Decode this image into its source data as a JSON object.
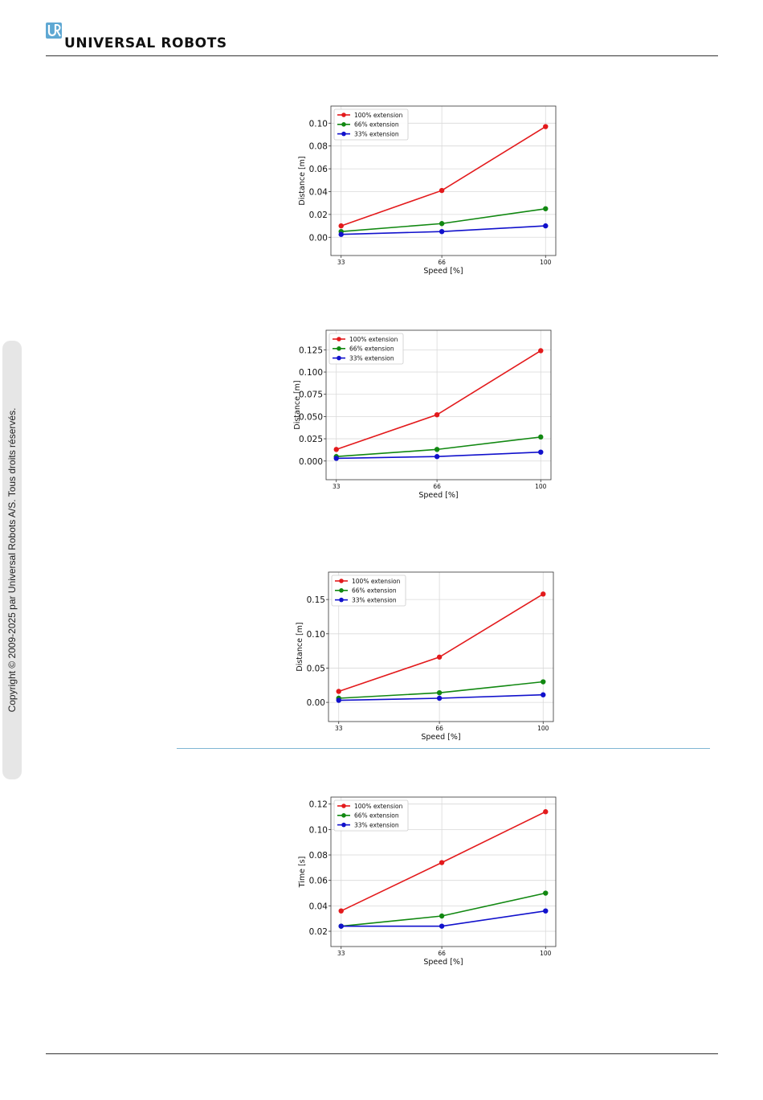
{
  "header": {
    "brand": "UNIVERSAL ROBOTS",
    "brand_color": "#1a1a1a",
    "logo_color": "#5fa8d3"
  },
  "sidebar": {
    "copyright": "Copyright © 2009-2025 par Universal Robots A/S. Tous droits réservés."
  },
  "chart_data": [
    {
      "type": "line",
      "x": [
        33,
        66,
        100
      ],
      "xticks": [
        "33",
        "66",
        "100"
      ],
      "xlabel": "Speed [%]",
      "ylabel": "Distance [m]",
      "ylim": [
        -0.016,
        0.115
      ],
      "yticks": [
        "0.00",
        "0.02",
        "0.04",
        "0.06",
        "0.08",
        "0.10"
      ],
      "ytick_values": [
        0,
        0.02,
        0.04,
        0.06,
        0.08,
        0.1
      ],
      "grid": true,
      "legend": "top-left",
      "series": [
        {
          "name": "100% extension",
          "color": "#e31a1c",
          "values": [
            0.01,
            0.041,
            0.097
          ]
        },
        {
          "name": "66% extension",
          "color": "#118811",
          "values": [
            0.005,
            0.012,
            0.025
          ]
        },
        {
          "name": "33% extension",
          "color": "#1111cc",
          "values": [
            0.0025,
            0.005,
            0.01
          ]
        }
      ]
    },
    {
      "type": "line",
      "x": [
        33,
        66,
        100
      ],
      "xticks": [
        "33",
        "66",
        "100"
      ],
      "xlabel": "Speed [%]",
      "ylabel": "Distance [m]",
      "ylim": [
        -0.021,
        0.147
      ],
      "yticks": [
        "0.000",
        "0.025",
        "0.050",
        "0.075",
        "0.100",
        "0.125"
      ],
      "ytick_values": [
        0,
        0.025,
        0.05,
        0.075,
        0.1,
        0.125
      ],
      "grid": true,
      "legend": "top-left",
      "series": [
        {
          "name": "100% extension",
          "color": "#e31a1c",
          "values": [
            0.013,
            0.052,
            0.124
          ]
        },
        {
          "name": "66% extension",
          "color": "#118811",
          "values": [
            0.005,
            0.013,
            0.027
          ]
        },
        {
          "name": "33% extension",
          "color": "#1111cc",
          "values": [
            0.003,
            0.005,
            0.01
          ]
        }
      ]
    },
    {
      "type": "line",
      "x": [
        33,
        66,
        100
      ],
      "xticks": [
        "33",
        "66",
        "100"
      ],
      "xlabel": "Speed [%]",
      "ylabel": "Distance [m]",
      "ylim": [
        -0.028,
        0.19
      ],
      "yticks": [
        "0.00",
        "0.05",
        "0.10",
        "0.15"
      ],
      "ytick_values": [
        0,
        0.05,
        0.1,
        0.15
      ],
      "grid": true,
      "legend": "top-left",
      "series": [
        {
          "name": "100% extension",
          "color": "#e31a1c",
          "values": [
            0.016,
            0.066,
            0.158
          ]
        },
        {
          "name": "66% extension",
          "color": "#118811",
          "values": [
            0.006,
            0.014,
            0.03
          ]
        },
        {
          "name": "33% extension",
          "color": "#1111cc",
          "values": [
            0.003,
            0.006,
            0.011
          ]
        }
      ]
    },
    {
      "type": "line",
      "x": [
        33,
        66,
        100
      ],
      "xticks": [
        "33",
        "66",
        "100"
      ],
      "xlabel": "Speed [%]",
      "ylabel": "Time [s]",
      "ylim": [
        0.008,
        0.1255
      ],
      "yticks": [
        "0.02",
        "0.04",
        "0.06",
        "0.08",
        "0.10",
        "0.12"
      ],
      "ytick_values": [
        0.02,
        0.04,
        0.06,
        0.08,
        0.1,
        0.12
      ],
      "grid": true,
      "legend": "top-left",
      "series": [
        {
          "name": "100% extension",
          "color": "#e31a1c",
          "values": [
            0.036,
            0.074,
            0.114
          ]
        },
        {
          "name": "66% extension",
          "color": "#118811",
          "values": [
            0.024,
            0.032,
            0.05
          ]
        },
        {
          "name": "33% extension",
          "color": "#1111cc",
          "values": [
            0.024,
            0.024,
            0.036
          ]
        }
      ]
    }
  ]
}
